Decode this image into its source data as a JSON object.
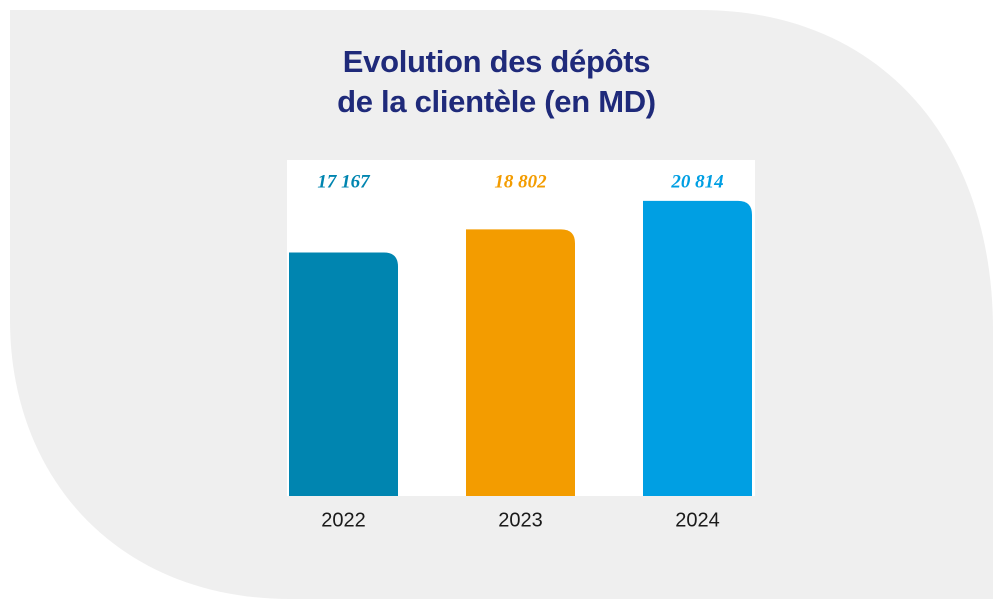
{
  "chart_data": {
    "type": "bar",
    "title": "Evolution des dépôts\nde la clientèle (en MD)",
    "categories": [
      "2022",
      "2023",
      "2024"
    ],
    "values": [
      17167,
      18802,
      20814
    ],
    "value_labels": [
      "17 167",
      "18 802",
      "20 814"
    ],
    "colors": [
      "#0085b0",
      "#f39c00",
      "#009fe3"
    ],
    "ylim": [
      0,
      22000
    ]
  }
}
